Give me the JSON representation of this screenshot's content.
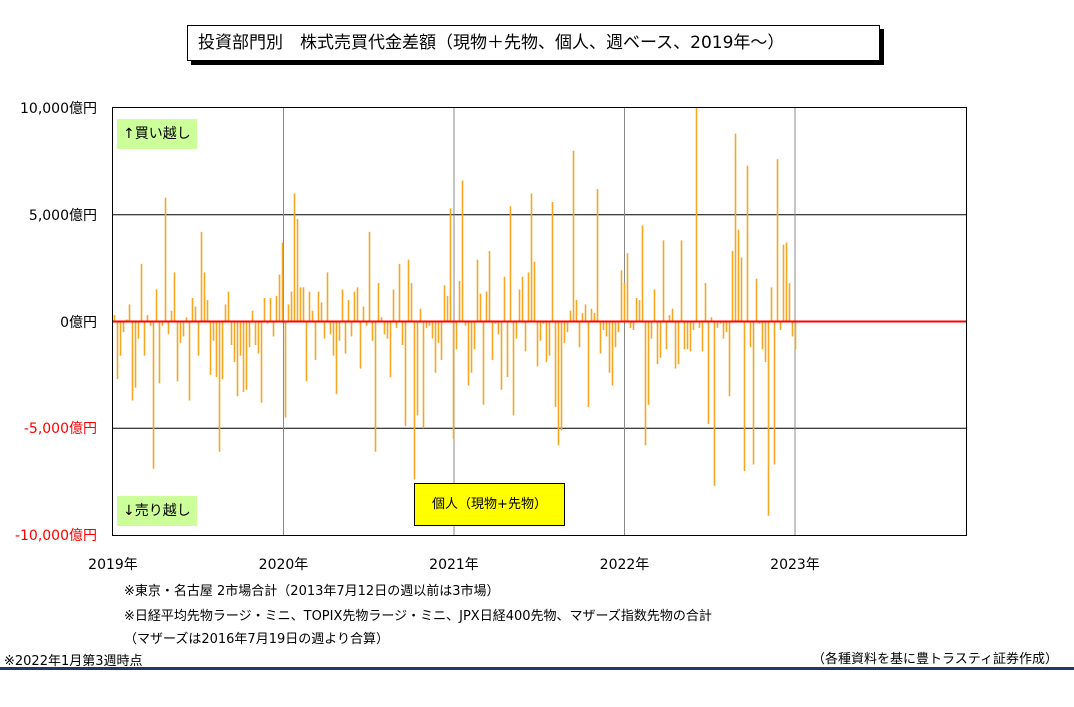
{
  "chart_data": {
    "type": "bar",
    "title": "投資部門別　株式売買代金差額（現物＋先物、個人、週ベース、2019年～）",
    "series_name": "個人（現物+先物）",
    "ylim": [
      -10000,
      10000
    ],
    "yticks": [
      {
        "value": 10000,
        "label": "10,000億円",
        "color": "#000000"
      },
      {
        "value": 5000,
        "label": "5,000億円",
        "color": "#000000"
      },
      {
        "value": 0,
        "label": "0億円",
        "color": "#000000"
      },
      {
        "value": -5000,
        "label": "-5,000億円",
        "color": "#ff0000"
      },
      {
        "value": -10000,
        "label": "-10,000億円",
        "color": "#ff0000"
      }
    ],
    "xticks": [
      "2019年",
      "2020年",
      "2021年",
      "2022年",
      "2023年"
    ],
    "grid": true,
    "zero_line_color": "#ff0000",
    "bar_color": "#f5a623",
    "values": [
      300,
      -2700,
      -1600,
      -500,
      100,
      800,
      -3700,
      -3100,
      -800,
      2700,
      -1600,
      300,
      -200,
      -6900,
      1500,
      -2900,
      -200,
      5800,
      -600,
      500,
      2300,
      -2800,
      -1000,
      -700,
      200,
      -3700,
      1100,
      700,
      -1600,
      4200,
      2300,
      1000,
      -2500,
      -900,
      -2600,
      -6100,
      -2700,
      800,
      1400,
      -1100,
      -1900,
      -3500,
      -1600,
      -3300,
      -3200,
      -1200,
      500,
      -1100,
      -1500,
      -3800,
      1100,
      -100,
      1100,
      -700,
      1200,
      2200,
      3700,
      -4500,
      800,
      1400,
      6000,
      4800,
      1600,
      1600,
      -2800,
      1400,
      500,
      -1800,
      1400,
      900,
      -800,
      2300,
      -600,
      -1600,
      -3400,
      -900,
      1500,
      -1500,
      1000,
      -700,
      1400,
      1600,
      -2200,
      700,
      -200,
      4200,
      -900,
      -6100,
      1800,
      200,
      -600,
      -800,
      -2600,
      1500,
      -300,
      2700,
      -1100,
      -4900,
      2900,
      1800,
      -7400,
      -4400,
      600,
      -5000,
      -300,
      -200,
      -800,
      -2400,
      -1000,
      -1800,
      1700,
      1200,
      5300,
      -5500,
      -1300,
      1900,
      6600,
      -200,
      -3000,
      -2400,
      -1300,
      2900,
      1300,
      -3900,
      1400,
      3300,
      -1800,
      -100,
      -600,
      -3200,
      2100,
      -2600,
      5400,
      -4400,
      -800,
      1500,
      2100,
      -1400,
      2300,
      6000,
      2800,
      -2100,
      -900,
      -100,
      -1900,
      -1600,
      5600,
      -4000,
      -5800,
      -5100,
      -1000,
      -500,
      500,
      8000,
      1000,
      -1200,
      400,
      800,
      -4000,
      600,
      400,
      6200,
      -1500,
      -400,
      -700,
      -2400,
      -3000,
      -1200,
      -500,
      2400,
      1800,
      3200,
      -300,
      -400,
      1100,
      1000,
      4500,
      -5800,
      -3900,
      -800,
      1500,
      -2000,
      -1700,
      3800,
      -1300,
      300,
      600,
      -2200,
      -2000,
      3800,
      -1300,
      -1300,
      -1400,
      -400,
      10000,
      -300,
      -1400,
      1800,
      -4800,
      200,
      -7700,
      -300,
      -100,
      -800,
      -500,
      -3500,
      3300,
      8800,
      4300,
      3000,
      -7000,
      7300,
      -1200,
      -6700,
      2000,
      -100,
      -1300,
      -1900,
      -9100,
      1600,
      -6700,
      7600,
      -400,
      3600,
      3700,
      1800,
      -700,
      -1300
    ]
  },
  "tags": {
    "buy": "↑買い越し",
    "sell": "↓売り越し"
  },
  "notes": {
    "line1": "※東京・名古屋 2市場合計（2013年7月12日の週以前は3市場）",
    "line2": "※日経平均先物ラージ・ミニ、TOPIX先物ラージ・ミニ、JPX日経400先物、マザーズ指数先物の合計",
    "line3": "（マザーズは2016年7月19日の週より合算）",
    "date_note": "※2022年1月第3週時点",
    "source": "（各種資料を基に豊トラスティ証券作成）"
  }
}
